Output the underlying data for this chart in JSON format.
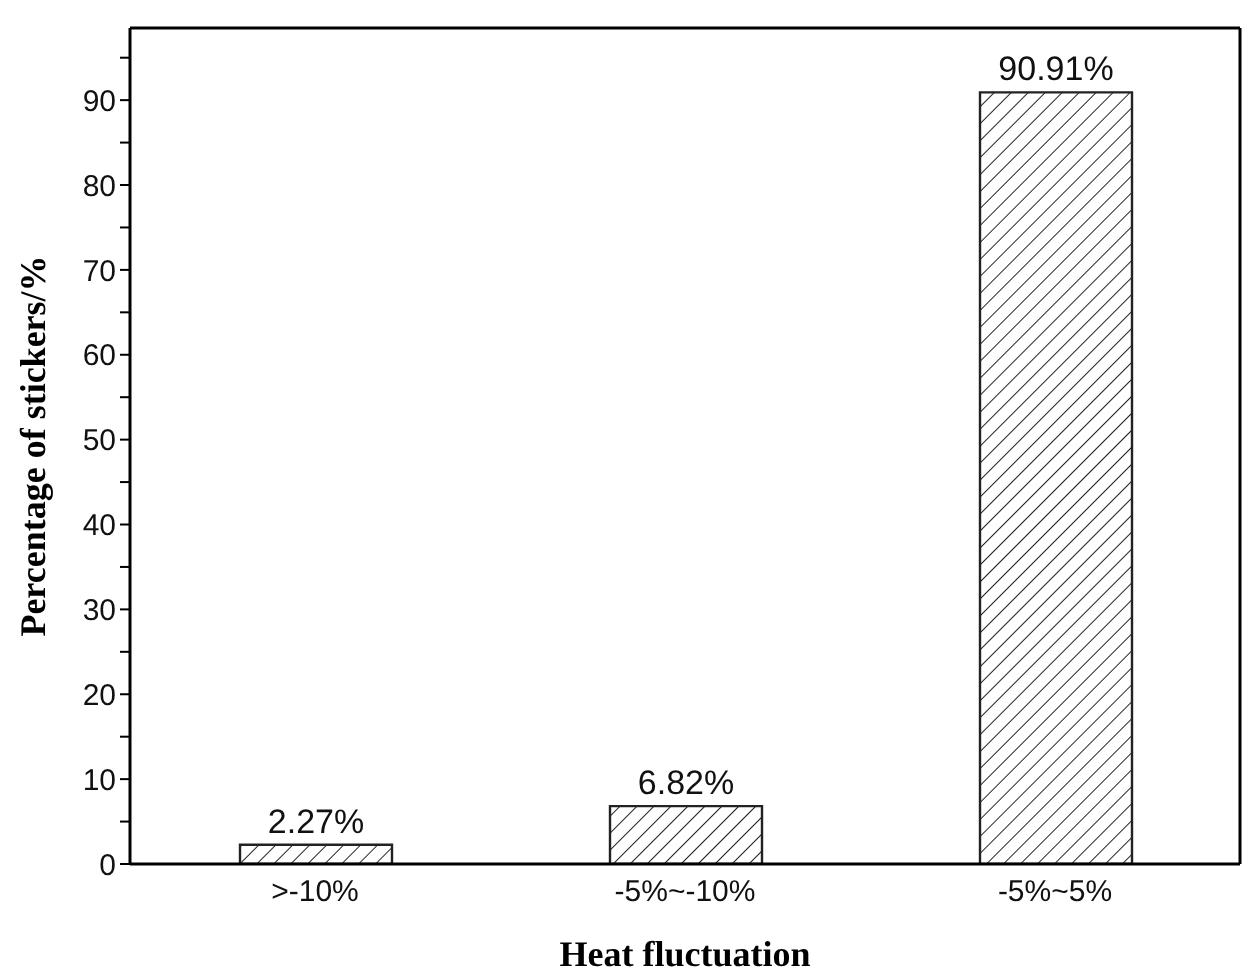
{
  "chart_data": {
    "type": "bar",
    "xlabel": "Heat fluctuation",
    "ylabel": "Percentage of stickers/%",
    "categories": [
      ">-10%",
      "-5%~-10%",
      "-5%~5%"
    ],
    "values": [
      2.27,
      6.82,
      90.91
    ],
    "value_labels": [
      "2.27%",
      "6.82%",
      "90.91%"
    ],
    "color": "#222222",
    "ylim": [
      0,
      98.5
    ],
    "yticks": [
      0,
      {
        "value": 5,
        "label": null
      },
      10,
      {
        "value": 15,
        "label": null
      },
      20,
      {
        "value": 25,
        "label": null
      },
      30,
      {
        "value": 35,
        "label": null
      },
      40,
      {
        "value": 45,
        "label": null
      },
      50,
      {
        "value": 55,
        "label": null
      },
      60,
      {
        "value": 65,
        "label": null
      },
      70,
      {
        "value": 75,
        "label": null
      },
      80,
      {
        "value": 85,
        "label": null
      },
      90,
      {
        "value": 95,
        "label": null
      }
    ],
    "grid": false
  }
}
